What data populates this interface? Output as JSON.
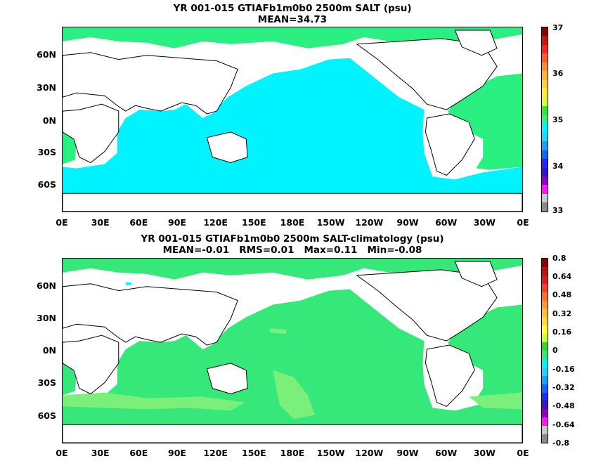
{
  "panel_top": {
    "title_line1": "YR 001-015 GTIAFb1m0b0 2500m SALT (psu)",
    "title_line2": "MEAN=34.73",
    "colors": {
      "ocean_main": "#00f4ff",
      "ocean_atlantic": "#29f080",
      "land": "#ffffff",
      "coast": "#000000"
    },
    "colorbar": {
      "labels": [
        "37",
        "36",
        "35",
        "34",
        "33"
      ],
      "colors": [
        "#8b0000",
        "#c81414",
        "#ff2222",
        "#ff5a2a",
        "#ff8c32",
        "#ffb43c",
        "#ffd23c",
        "#ffea3c",
        "#d2ff3c",
        "#2ee83a",
        "#38f07a",
        "#00f4ff",
        "#22d2ff",
        "#1aa0ff",
        "#1464ff",
        "#1e28ff",
        "#3c14c8",
        "#8c00c8",
        "#ff14ff",
        "#c8c8c8",
        "#8a8a8a"
      ]
    }
  },
  "panel_bottom": {
    "title_line1": "YR 001-015 GTIAFb1m0b0 2500m SALT-climatology (psu)",
    "title_line2": "MEAN=-0.01   RMS=0.01   Max=0.11   Min=-0.08",
    "colors": {
      "ocean_main": "#36e87a",
      "ocean_patch": "#7af07a",
      "ocean_cyan": "#00f4ff",
      "land": "#ffffff",
      "coast": "#000000"
    },
    "colorbar": {
      "labels": [
        "0.8",
        "0.64",
        "0.48",
        "0.32",
        "0.16",
        "0",
        "-0.16",
        "-0.32",
        "-0.48",
        "-0.64",
        "-0.8"
      ],
      "colors": [
        "#8b0000",
        "#b41414",
        "#dc1e1e",
        "#ff3c28",
        "#ff6e32",
        "#ff9632",
        "#ffbe3c",
        "#ffdc3c",
        "#ffff32",
        "#c8ff32",
        "#2ed83a",
        "#36e87a",
        "#00f4ff",
        "#22d2ff",
        "#1aa0ff",
        "#1464ff",
        "#1e28ff",
        "#3c14c8",
        "#8c00c8",
        "#ff14ff",
        "#c8c8c8",
        "#8a8a8a"
      ]
    }
  },
  "axes": {
    "lat_labels": [
      "60N",
      "30N",
      "0N",
      "30S",
      "60S"
    ],
    "lon_labels": [
      "0E",
      "30E",
      "60E",
      "90E",
      "120E",
      "150E",
      "180E",
      "150W",
      "120W",
      "90W",
      "60W",
      "30W",
      "0E"
    ]
  }
}
